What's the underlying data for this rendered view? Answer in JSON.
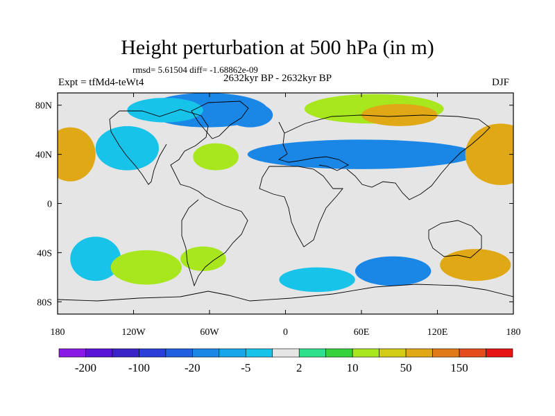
{
  "title": "Height perturbation at 500 hPa (in m)",
  "stats": "rmsd= 5.61504 diff= -1.68862e-09",
  "left_label": "Expt = tfMd4-teWt4",
  "center_label": "2632kyr BP - 2632kyr BP",
  "right_label": "DJF",
  "chart_data": {
    "type": "heatmap",
    "title": "Height perturbation at 500 hPa (in m)",
    "xlabel": "",
    "ylabel": "",
    "xlim": [
      -180,
      180
    ],
    "ylim": [
      -90,
      90
    ],
    "x_ticks": [
      {
        "value": -180,
        "label": "180"
      },
      {
        "value": -120,
        "label": "120W"
      },
      {
        "value": -60,
        "label": "60W"
      },
      {
        "value": 0,
        "label": "0"
      },
      {
        "value": 60,
        "label": "60E"
      },
      {
        "value": 120,
        "label": "120E"
      },
      {
        "value": 180,
        "label": "180"
      }
    ],
    "y_ticks": [
      {
        "value": 80,
        "label": "80N"
      },
      {
        "value": 40,
        "label": "40N"
      },
      {
        "value": 0,
        "label": "0"
      },
      {
        "value": -40,
        "label": "40S"
      },
      {
        "value": -80,
        "label": "80S"
      }
    ],
    "colorbar": {
      "colors": [
        "#8a19e6",
        "#5a14d8",
        "#3a24c8",
        "#2a3fd8",
        "#1f5fe0",
        "#1a86e6",
        "#14a6e8",
        "#18c3ea",
        "#e5e5e5",
        "#2ee08a",
        "#36d23c",
        "#a8e61e",
        "#d2cc14",
        "#e0a814",
        "#e07a14",
        "#e44c1c",
        "#e61414"
      ],
      "labels": [
        {
          "after_box": 1,
          "text": "-200"
        },
        {
          "after_box": 3,
          "text": "-100"
        },
        {
          "after_box": 5,
          "text": "-20"
        },
        {
          "after_box": 7,
          "text": "-5"
        },
        {
          "after_box": 9,
          "text": "2"
        },
        {
          "after_box": 11,
          "text": "10"
        },
        {
          "after_box": 13,
          "text": "50"
        },
        {
          "after_box": 15,
          "text": "150"
        }
      ]
    },
    "anomaly_regions": [
      {
        "name": "north-atlantic-greenland-low",
        "lon": -62,
        "lat": 76,
        "rlon": 48,
        "rlat": 14,
        "value": -20
      },
      {
        "name": "labrador-low",
        "lon": -28,
        "lat": 72,
        "rlon": 18,
        "rlat": 10,
        "value": -20
      },
      {
        "name": "arctic-canada-low",
        "lon": -95,
        "lat": 76,
        "rlon": 30,
        "rlat": 10,
        "value": -5
      },
      {
        "name": "eurasia-low-band",
        "lon": 60,
        "lat": 40,
        "rlon": 90,
        "rlat": 12,
        "value": -20
      },
      {
        "name": "east-pacific-low",
        "lon": -125,
        "lat": 45,
        "rlon": 25,
        "rlat": 18,
        "value": -5
      },
      {
        "name": "siberia-high",
        "lon": 70,
        "lat": 77,
        "rlon": 55,
        "rlat": 12,
        "value": 10
      },
      {
        "name": "siberia-high-core",
        "lon": 90,
        "lat": 72,
        "rlon": 30,
        "rlat": 9,
        "value": 50
      },
      {
        "name": "west-pacific-high",
        "lon": 170,
        "lat": 40,
        "rlon": 28,
        "rlat": 25,
        "value": 50
      },
      {
        "name": "dateline-high",
        "lon": -170,
        "lat": 40,
        "rlon": 20,
        "rlat": 22,
        "value": 50
      },
      {
        "name": "north-atlantic-high",
        "lon": -55,
        "lat": 38,
        "rlon": 18,
        "rlat": 11,
        "value": 10
      },
      {
        "name": "southern-pacific-low",
        "lon": -150,
        "lat": -45,
        "rlon": 20,
        "rlat": 18,
        "value": -5
      },
      {
        "name": "south-pacific-high",
        "lon": -110,
        "lat": -52,
        "rlon": 28,
        "rlat": 14,
        "value": 10
      },
      {
        "name": "south-atlantic-low",
        "lon": 25,
        "lat": -62,
        "rlon": 30,
        "rlat": 10,
        "value": -5
      },
      {
        "name": "south-indian-low",
        "lon": 85,
        "lat": -55,
        "rlon": 30,
        "rlat": 12,
        "value": -20
      },
      {
        "name": "australia-south-high",
        "lon": 150,
        "lat": -50,
        "rlon": 28,
        "rlat": 13,
        "value": 50
      },
      {
        "name": "antarctic-peninsula-high",
        "lon": -65,
        "lat": -45,
        "rlon": 18,
        "rlat": 10,
        "value": 10
      }
    ]
  }
}
